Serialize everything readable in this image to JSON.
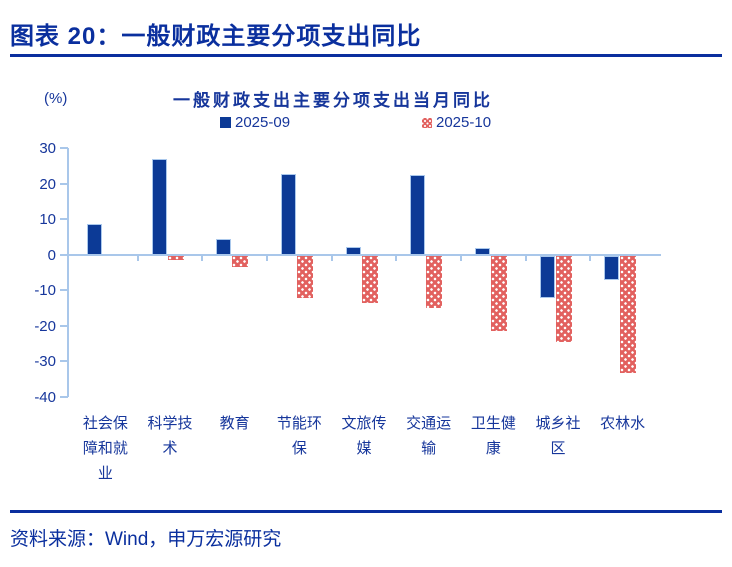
{
  "page": {
    "title": "图表 20：一般财政主要分项支出同比",
    "source": "资料来源：Wind，申万宏源研究"
  },
  "colors": {
    "accent": "#0a2f9e",
    "text_navy": "#16369b",
    "axis_line": "#a9c7ea",
    "bar_blue": "#0c3a96",
    "bar_red": "#e2615f"
  },
  "chart_data": {
    "type": "bar",
    "title": "一般财政支出主要分项支出当月同比",
    "unit_label": "(%)",
    "categories": [
      "社会保障和就业",
      "科学技术",
      "教育",
      "节能环保",
      "文旅传媒",
      "交通运输",
      "卫生健康",
      "城乡社区",
      "农林水"
    ],
    "series": [
      {
        "name": "2025-09",
        "color": "#0c3a96",
        "style": "solid",
        "values": [
          8.7,
          26.8,
          4.4,
          22.6,
          2.2,
          22.4,
          2.0,
          -11.9,
          -6.9
        ]
      },
      {
        "name": "2025-10",
        "color": "#e2615f",
        "style": "dot-pattern",
        "values": [
          0.0,
          -1.2,
          -3.2,
          -11.8,
          -13.2,
          -14.6,
          -21.1,
          -24.2,
          -33.0
        ]
      }
    ],
    "ylim": [
      -40,
      30
    ],
    "yticks": [
      30,
      20,
      10,
      0,
      -10,
      -20,
      -30,
      -40
    ],
    "grid": false,
    "legend_position": "top"
  }
}
